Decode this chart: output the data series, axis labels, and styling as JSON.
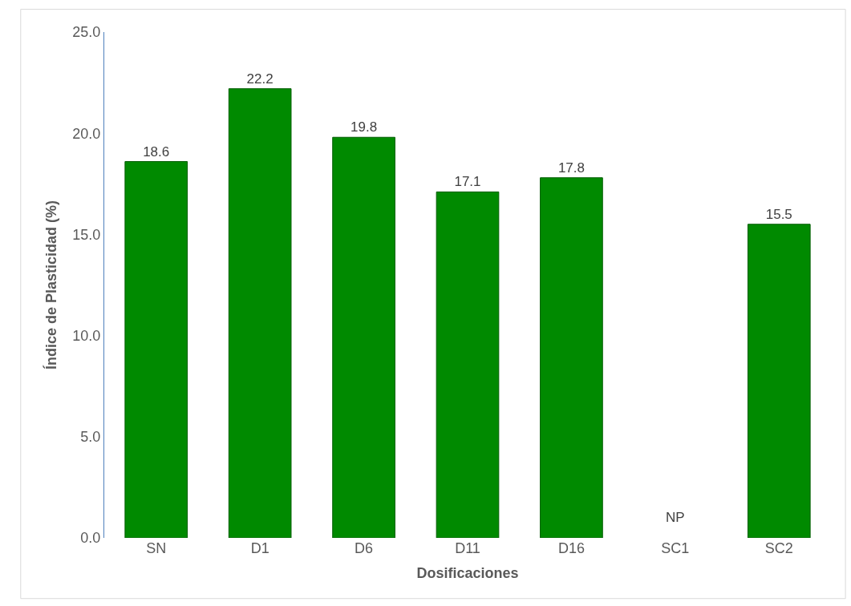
{
  "chart_data": {
    "type": "bar",
    "xlabel": "Dosificaciones",
    "ylabel": "Índice de Plasticidad (%)",
    "categories": [
      "SN",
      "D1",
      "D6",
      "D11",
      "D16",
      "SC1",
      "SC2"
    ],
    "values": [
      18.6,
      22.2,
      19.8,
      17.1,
      17.8,
      null,
      15.5
    ],
    "value_labels": [
      "18.6",
      "22.2",
      "19.8",
      "17.1",
      "17.8",
      "NP",
      "15.5"
    ],
    "color": "#008a00",
    "ylim": [
      0,
      25
    ],
    "yticks": [
      {
        "value": 0,
        "label": "0.0"
      },
      {
        "value": 5,
        "label": "5.0"
      },
      {
        "value": 10,
        "label": "10.0"
      },
      {
        "value": 15,
        "label": "15.0"
      },
      {
        "value": 20,
        "label": "20.0"
      },
      {
        "value": 25,
        "label": "25.0"
      }
    ],
    "legend": false
  }
}
